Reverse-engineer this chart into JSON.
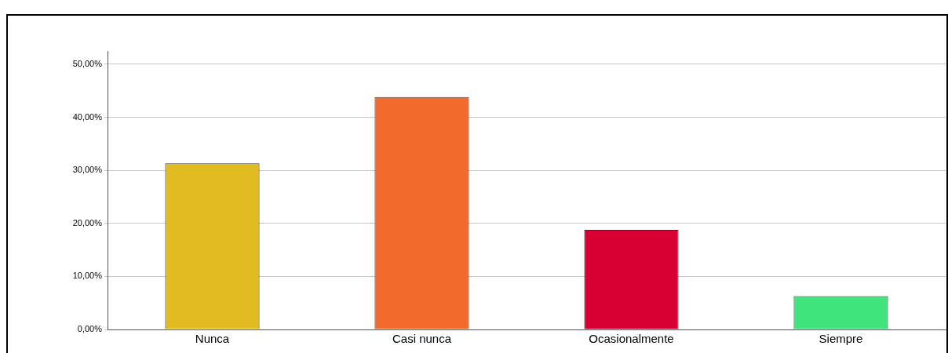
{
  "chart_data": {
    "type": "bar",
    "categories": [
      "Nunca",
      "Casi nunca",
      "Ocasionalmente",
      "Siempre"
    ],
    "values": [
      31.3,
      43.8,
      18.8,
      6.3
    ],
    "colors": [
      "#e0bb22",
      "#f26a2c",
      "#d80032",
      "#3fe57c"
    ],
    "ylim": [
      0,
      52.5
    ],
    "yticks": [
      {
        "value": 0,
        "label": "0,00%"
      },
      {
        "value": 10,
        "label": "10,00%"
      },
      {
        "value": 20,
        "label": "20,00%"
      },
      {
        "value": 30,
        "label": "30,00%"
      },
      {
        "value": 40,
        "label": "40,00%"
      },
      {
        "value": 50,
        "label": "50,00%"
      }
    ],
    "grid": "y",
    "legend": false
  }
}
